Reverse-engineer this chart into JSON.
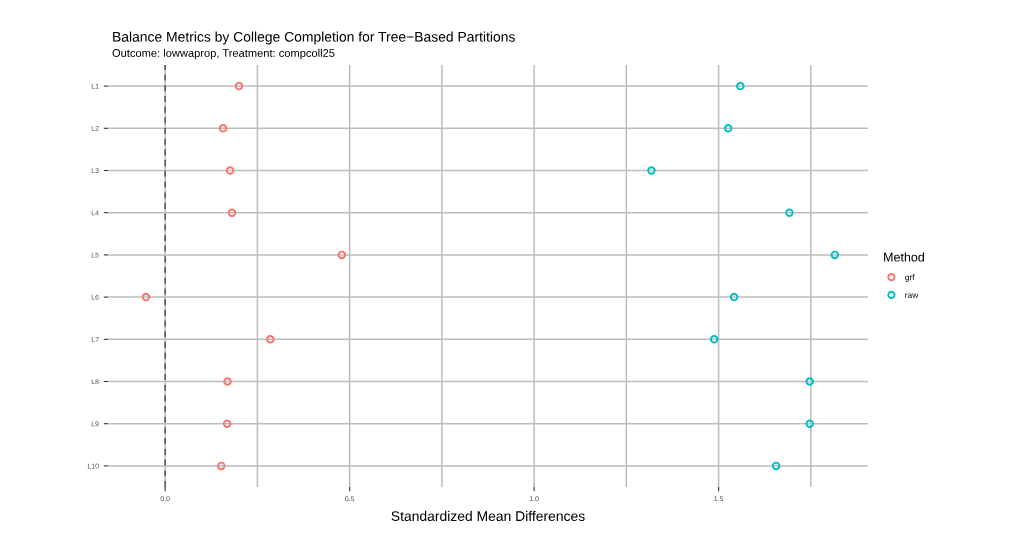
{
  "chart_data": {
    "type": "scatter",
    "title": "Balance Metrics by College Completion for Tree−Based Partitions",
    "subtitle": "Outcome: lowwaprop, Treatment: compcoll25",
    "xlabel": "Standardized Mean Differences",
    "orientation": "horizontal",
    "categories": [
      "L1",
      "L2",
      "L3",
      "L4",
      "L5",
      "L6",
      "L7",
      "L8",
      "L9",
      "L10"
    ],
    "series": [
      {
        "name": "grf",
        "color": "#f8766d",
        "values": [
          0.2,
          0.157,
          0.176,
          0.181,
          0.479,
          -0.052,
          0.285,
          0.169,
          0.168,
          0.152
        ]
      },
      {
        "name": "raw",
        "color": "#00bfc4",
        "values": [
          1.559,
          1.526,
          1.318,
          1.692,
          1.815,
          1.542,
          1.488,
          1.747,
          1.747,
          1.656
        ]
      }
    ],
    "legend_title": "Method",
    "legend": "right",
    "marker": "circle",
    "grid": true,
    "xlim": [
      -0.155,
      1.905
    ],
    "xticks": [
      {
        "value": 0,
        "label": "0.0"
      },
      {
        "value": 0.25,
        "label": null
      },
      {
        "value": 0.5,
        "label": "0.5"
      },
      {
        "value": 0.75,
        "label": null
      },
      {
        "value": 1,
        "label": "1.0"
      },
      {
        "value": 1.25,
        "label": null
      },
      {
        "value": 1.5,
        "label": "1.5"
      },
      {
        "value": 1.75,
        "label": null
      }
    ],
    "ref_lines": [
      {
        "axis": "x",
        "value": 0,
        "line_style": "dashed",
        "color": "#555555"
      }
    ]
  }
}
